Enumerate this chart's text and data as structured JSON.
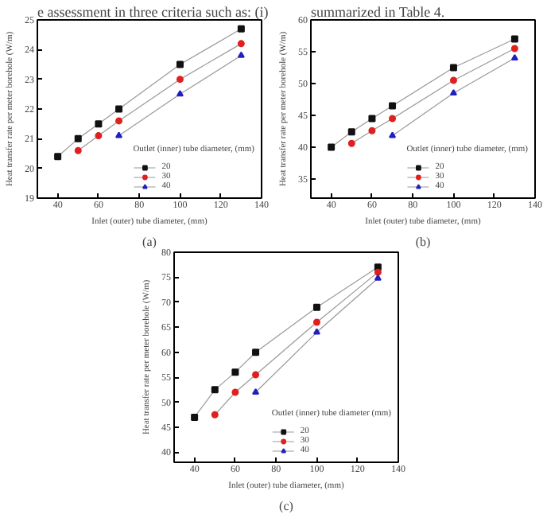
{
  "chart_data": [
    {
      "type": "line",
      "xlabel": "Inlet (outer) tube diameter, (mm)",
      "ylabel": "Heat transfer rate per meter borehole (W/m)",
      "legend_title": "Outlet (inner) tube diameter, (mm)",
      "legend": "bottom right",
      "grid": false,
      "xlim": [
        30,
        140
      ],
      "ylim": [
        19,
        25
      ],
      "xticks": [
        40,
        60,
        80,
        100,
        120,
        140
      ],
      "yticks": [
        19,
        20,
        21,
        22,
        23,
        24,
        25
      ],
      "x": [
        40,
        50,
        60,
        70,
        100,
        130
      ],
      "annotations": [
        "e assessment in three criteria such as: (i)",
        "(a)"
      ],
      "series": [
        {
          "name": "20",
          "color": "#111111",
          "marker": "square",
          "values": [
            20.4,
            21.0,
            21.5,
            22.0,
            23.5,
            24.7
          ]
        },
        {
          "name": "30",
          "color": "#e02020",
          "marker": "circle",
          "values": [
            null,
            20.6,
            21.1,
            21.6,
            23.0,
            24.2
          ]
        },
        {
          "name": "40",
          "color": "#2020c0",
          "marker": "triangle",
          "values": [
            null,
            null,
            null,
            21.1,
            22.5,
            23.8
          ]
        }
      ]
    },
    {
      "type": "line",
      "xlabel": "Inlet (outer) tube diameter, (mm)",
      "ylabel": "Heat transfer rate per meter borehole (W/m)",
      "legend_title": "Outlet (inner) tube diameter, (mm)",
      "legend": "bottom right",
      "grid": false,
      "xlim": [
        30,
        140
      ],
      "ylim": [
        32,
        60
      ],
      "xticks": [
        40,
        60,
        80,
        100,
        120,
        140
      ],
      "yticks": [
        35,
        40,
        45,
        50,
        55,
        60
      ],
      "x": [
        40,
        50,
        60,
        70,
        100,
        130
      ],
      "annotations": [
        "summarized in Table 4.",
        "(b)"
      ],
      "series": [
        {
          "name": "20",
          "color": "#111111",
          "marker": "square",
          "values": [
            40.0,
            42.4,
            44.5,
            46.5,
            52.5,
            57.0
          ]
        },
        {
          "name": "30",
          "color": "#e02020",
          "marker": "circle",
          "values": [
            null,
            40.6,
            42.6,
            44.5,
            50.5,
            55.5
          ]
        },
        {
          "name": "40",
          "color": "#2020c0",
          "marker": "triangle",
          "values": [
            null,
            null,
            null,
            41.8,
            48.5,
            54.0
          ]
        }
      ]
    },
    {
      "type": "line",
      "xlabel": "Inlet (outer) tube diameter, (mm)",
      "ylabel": "Heat transfer rate per meter borehole (W/m)",
      "legend_title": "Outlet (inner) tube diameter (mm)",
      "legend": "bottom right",
      "grid": false,
      "xlim": [
        30,
        140
      ],
      "ylim": [
        38,
        80
      ],
      "xticks": [
        40,
        60,
        80,
        100,
        120,
        140
      ],
      "yticks": [
        40,
        45,
        50,
        55,
        60,
        65,
        70,
        75,
        80
      ],
      "x": [
        40,
        50,
        60,
        70,
        100,
        130
      ],
      "annotations": [
        "(c)"
      ],
      "series": [
        {
          "name": "20",
          "color": "#111111",
          "marker": "square",
          "values": [
            47.0,
            52.5,
            56.0,
            60.0,
            69.0,
            77.0
          ]
        },
        {
          "name": "30",
          "color": "#e02020",
          "marker": "circle",
          "values": [
            null,
            47.5,
            52.0,
            55.5,
            66.0,
            76.0
          ]
        },
        {
          "name": "40",
          "color": "#2020c0",
          "marker": "triangle",
          "values": [
            null,
            null,
            null,
            52.0,
            64.0,
            74.8
          ]
        }
      ]
    }
  ]
}
